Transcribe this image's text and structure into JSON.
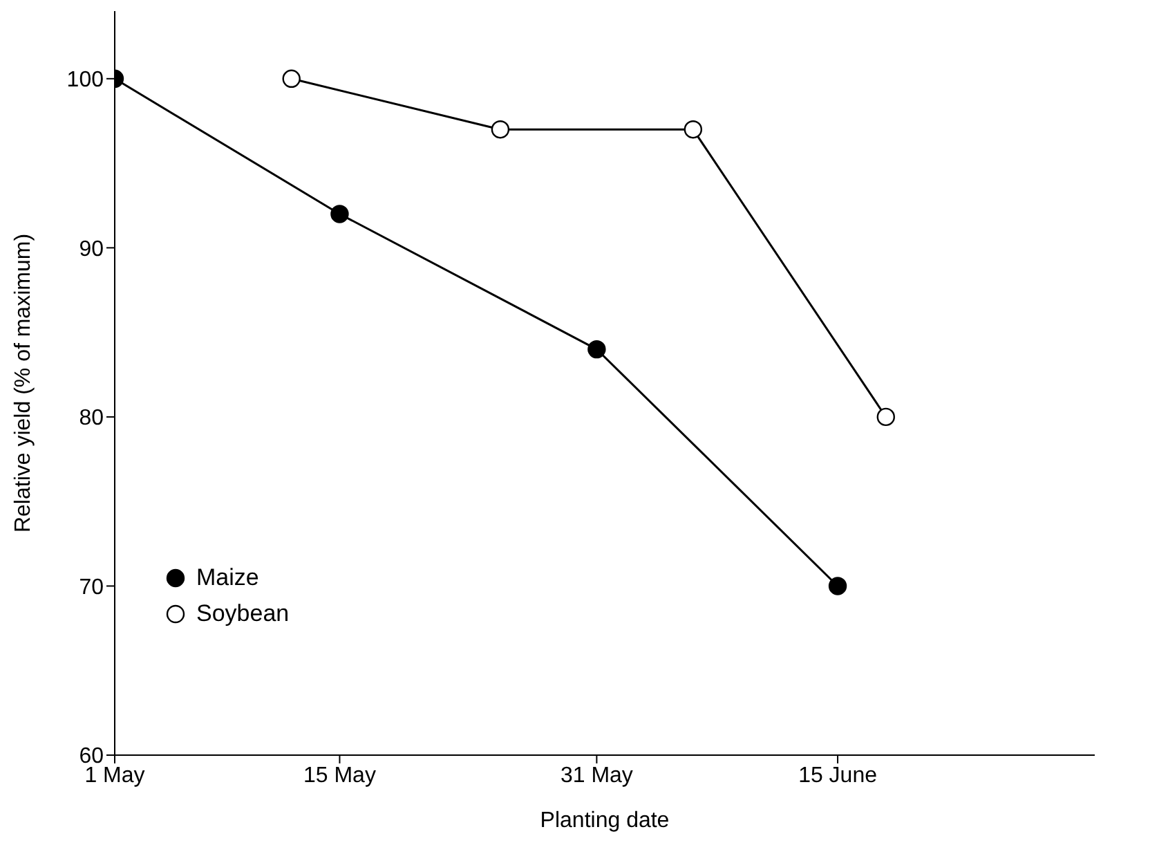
{
  "chart_data": {
    "type": "line",
    "xlabel": "Planting date",
    "ylabel": "Relative yield (% of maximum)",
    "xlim": [
      "--05-01",
      "--07-01"
    ],
    "xticks": [
      {
        "value": "--05-01",
        "label": "1 May"
      },
      {
        "value": "--05-15",
        "label": "15 May"
      },
      {
        "value": "--05-31",
        "label": "31 May"
      },
      {
        "value": "--06-15",
        "label": "15 June"
      }
    ],
    "ylim": [
      60,
      104
    ],
    "yticks": [
      60,
      70,
      80,
      90,
      100
    ],
    "series": [
      {
        "name": "Maize",
        "color": "#000000",
        "x": [
          "--05-01",
          "--05-15",
          "--05-31",
          "--06-15"
        ],
        "values": [
          100,
          92,
          84,
          70
        ]
      },
      {
        "name": "Soybean",
        "color": "#ffffff",
        "x": [
          "--05-12",
          "--05-25",
          "--06-06",
          "--06-18"
        ],
        "values": [
          100,
          97,
          97,
          80
        ]
      }
    ],
    "marker": "circle",
    "line_style": "solid",
    "grid": false,
    "legend": "bottom left"
  }
}
